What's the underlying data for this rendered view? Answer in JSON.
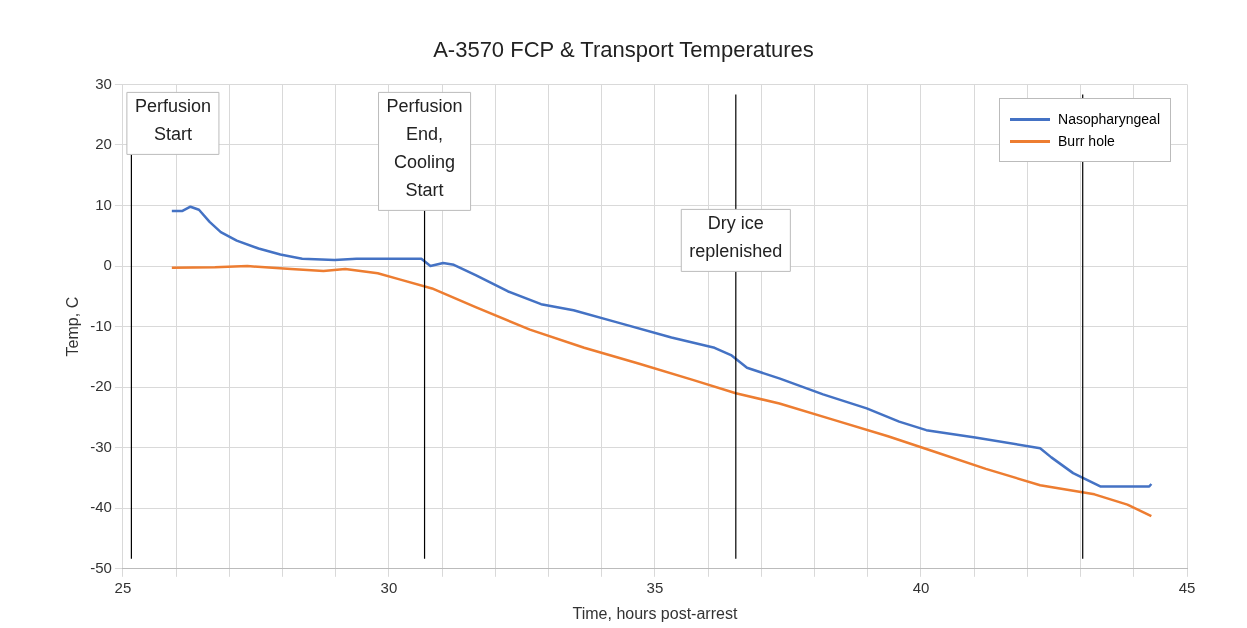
{
  "chart_data": {
    "type": "line",
    "title": "A-3570 FCP & Transport Temperatures",
    "xlabel": "Time, hours post-arrest",
    "ylabel": "Temp, C",
    "xlim": [
      25,
      45
    ],
    "xticks": [
      25,
      {
        "value": 26,
        "label": null
      },
      {
        "value": 27,
        "label": null
      },
      {
        "value": 28,
        "label": null
      },
      {
        "value": 29,
        "label": null
      },
      30,
      {
        "value": 31,
        "label": null
      },
      {
        "value": 32,
        "label": null
      },
      {
        "value": 33,
        "label": null
      },
      {
        "value": 34,
        "label": null
      },
      35,
      {
        "value": 36,
        "label": null
      },
      {
        "value": 37,
        "label": null
      },
      {
        "value": 38,
        "label": null
      },
      {
        "value": 39,
        "label": null
      },
      40,
      {
        "value": 41,
        "label": null
      },
      {
        "value": 42,
        "label": null
      },
      {
        "value": 43,
        "label": null
      },
      {
        "value": 44,
        "label": null
      },
      45
    ],
    "ylim": [
      -50,
      30
    ],
    "yticks": [
      -50,
      -40,
      -30,
      -20,
      -10,
      0,
      10,
      20,
      30
    ],
    "grid": true,
    "legend": "top right",
    "marker": "none",
    "line_style": "solid",
    "series": [
      {
        "name": "Nasopharyngeal",
        "color": "#4472c4",
        "x": [
          25.92,
          26.12,
          26.27,
          26.43,
          26.63,
          26.84,
          27.14,
          27.55,
          27.96,
          28.37,
          28.98,
          29.39,
          30.61,
          30.78,
          31.02,
          31.22,
          31.63,
          32.24,
          32.86,
          33.47,
          34.29,
          35.31,
          36.12,
          36.43,
          36.73,
          37.35,
          38.16,
          38.98,
          39.59,
          40.1,
          41.02,
          42.24,
          42.45,
          42.86,
          43.37,
          44.29,
          44.33
        ],
        "values": [
          9.1,
          9.1,
          9.8,
          9.3,
          7.3,
          5.6,
          4.2,
          2.9,
          1.9,
          1.2,
          1.0,
          1.2,
          1.2,
          0,
          0.5,
          0.2,
          -1.5,
          -4.2,
          -6.3,
          -7.3,
          -9.3,
          -11.8,
          -13.5,
          -14.7,
          -16.8,
          -18.6,
          -21.2,
          -23.5,
          -25.7,
          -27.1,
          -28.3,
          -30.1,
          -31.6,
          -34.2,
          -36.4,
          -36.4,
          -36.0
        ]
      },
      {
        "name": "Burr hole",
        "color": "#ed7d31",
        "x": [
          25.92,
          26.73,
          27.34,
          28.16,
          28.77,
          29.18,
          29.79,
          30.2,
          30.81,
          31.63,
          32.65,
          33.67,
          34.69,
          35.71,
          36.52,
          37.34,
          38.36,
          39.38,
          40.2,
          41.22,
          42.24,
          43.26,
          43.88,
          44.33
        ],
        "values": [
          -0.3,
          -0.2,
          0,
          -0.5,
          -0.8,
          -0.5,
          -1.2,
          -2.2,
          -3.7,
          -6.8,
          -10.5,
          -13.5,
          -16.1,
          -18.8,
          -21.0,
          -22.7,
          -25.4,
          -28.1,
          -30.5,
          -33.5,
          -36.2,
          -37.7,
          -39.4,
          -41.3
        ]
      }
    ],
    "ref_lines": [
      {
        "axis": "x",
        "value": 25.16,
        "label": "Perfusion\nStart",
        "color": "#000000"
      },
      {
        "axis": "x",
        "value": 30.67,
        "label": "Perfusion\nEnd,\nCooling\nStart",
        "color": "#000000"
      },
      {
        "axis": "x",
        "value": 36.52,
        "label": "Dry ice\nreplenished",
        "color": "#000000"
      },
      {
        "axis": "x",
        "value": 43.04,
        "label": null,
        "color": "#000000"
      }
    ]
  }
}
